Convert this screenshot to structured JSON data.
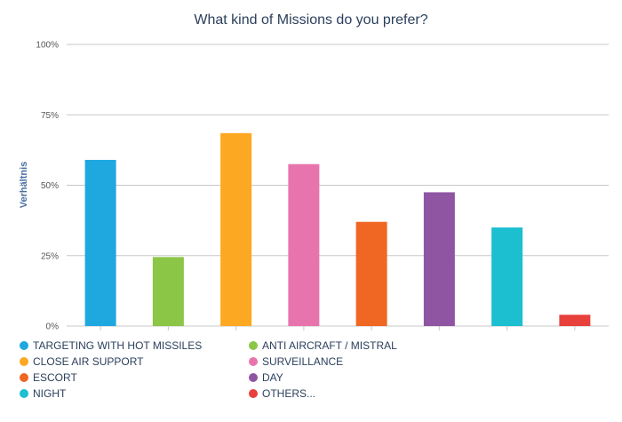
{
  "chart_data": {
    "type": "bar",
    "title": "What kind of Missions do you prefer?",
    "xlabel": "",
    "ylabel": "Verhältnis",
    "ylim": [
      0,
      100
    ],
    "yticks": [
      0,
      25,
      50,
      75,
      100
    ],
    "ytick_labels": [
      "0%",
      "25%",
      "50%",
      "75%",
      "100%"
    ],
    "grid": true,
    "legend_position": "bottom",
    "categories": [
      "TARGETING WITH HOT MISSILES",
      "ANTI AIRCRAFT / MISTRAL",
      "CLOSE AIR SUPPORT",
      "SURVEILLANCE",
      "ESCORT",
      "DAY",
      "NIGHT",
      "OTHERS..."
    ],
    "values": [
      59,
      24.5,
      68.5,
      57.5,
      37,
      47.5,
      35,
      4
    ],
    "colors": [
      "#1fa8e0",
      "#8bc646",
      "#fda822",
      "#e874ad",
      "#f06623",
      "#8f55a3",
      "#1cbfd0",
      "#e8403a"
    ]
  }
}
